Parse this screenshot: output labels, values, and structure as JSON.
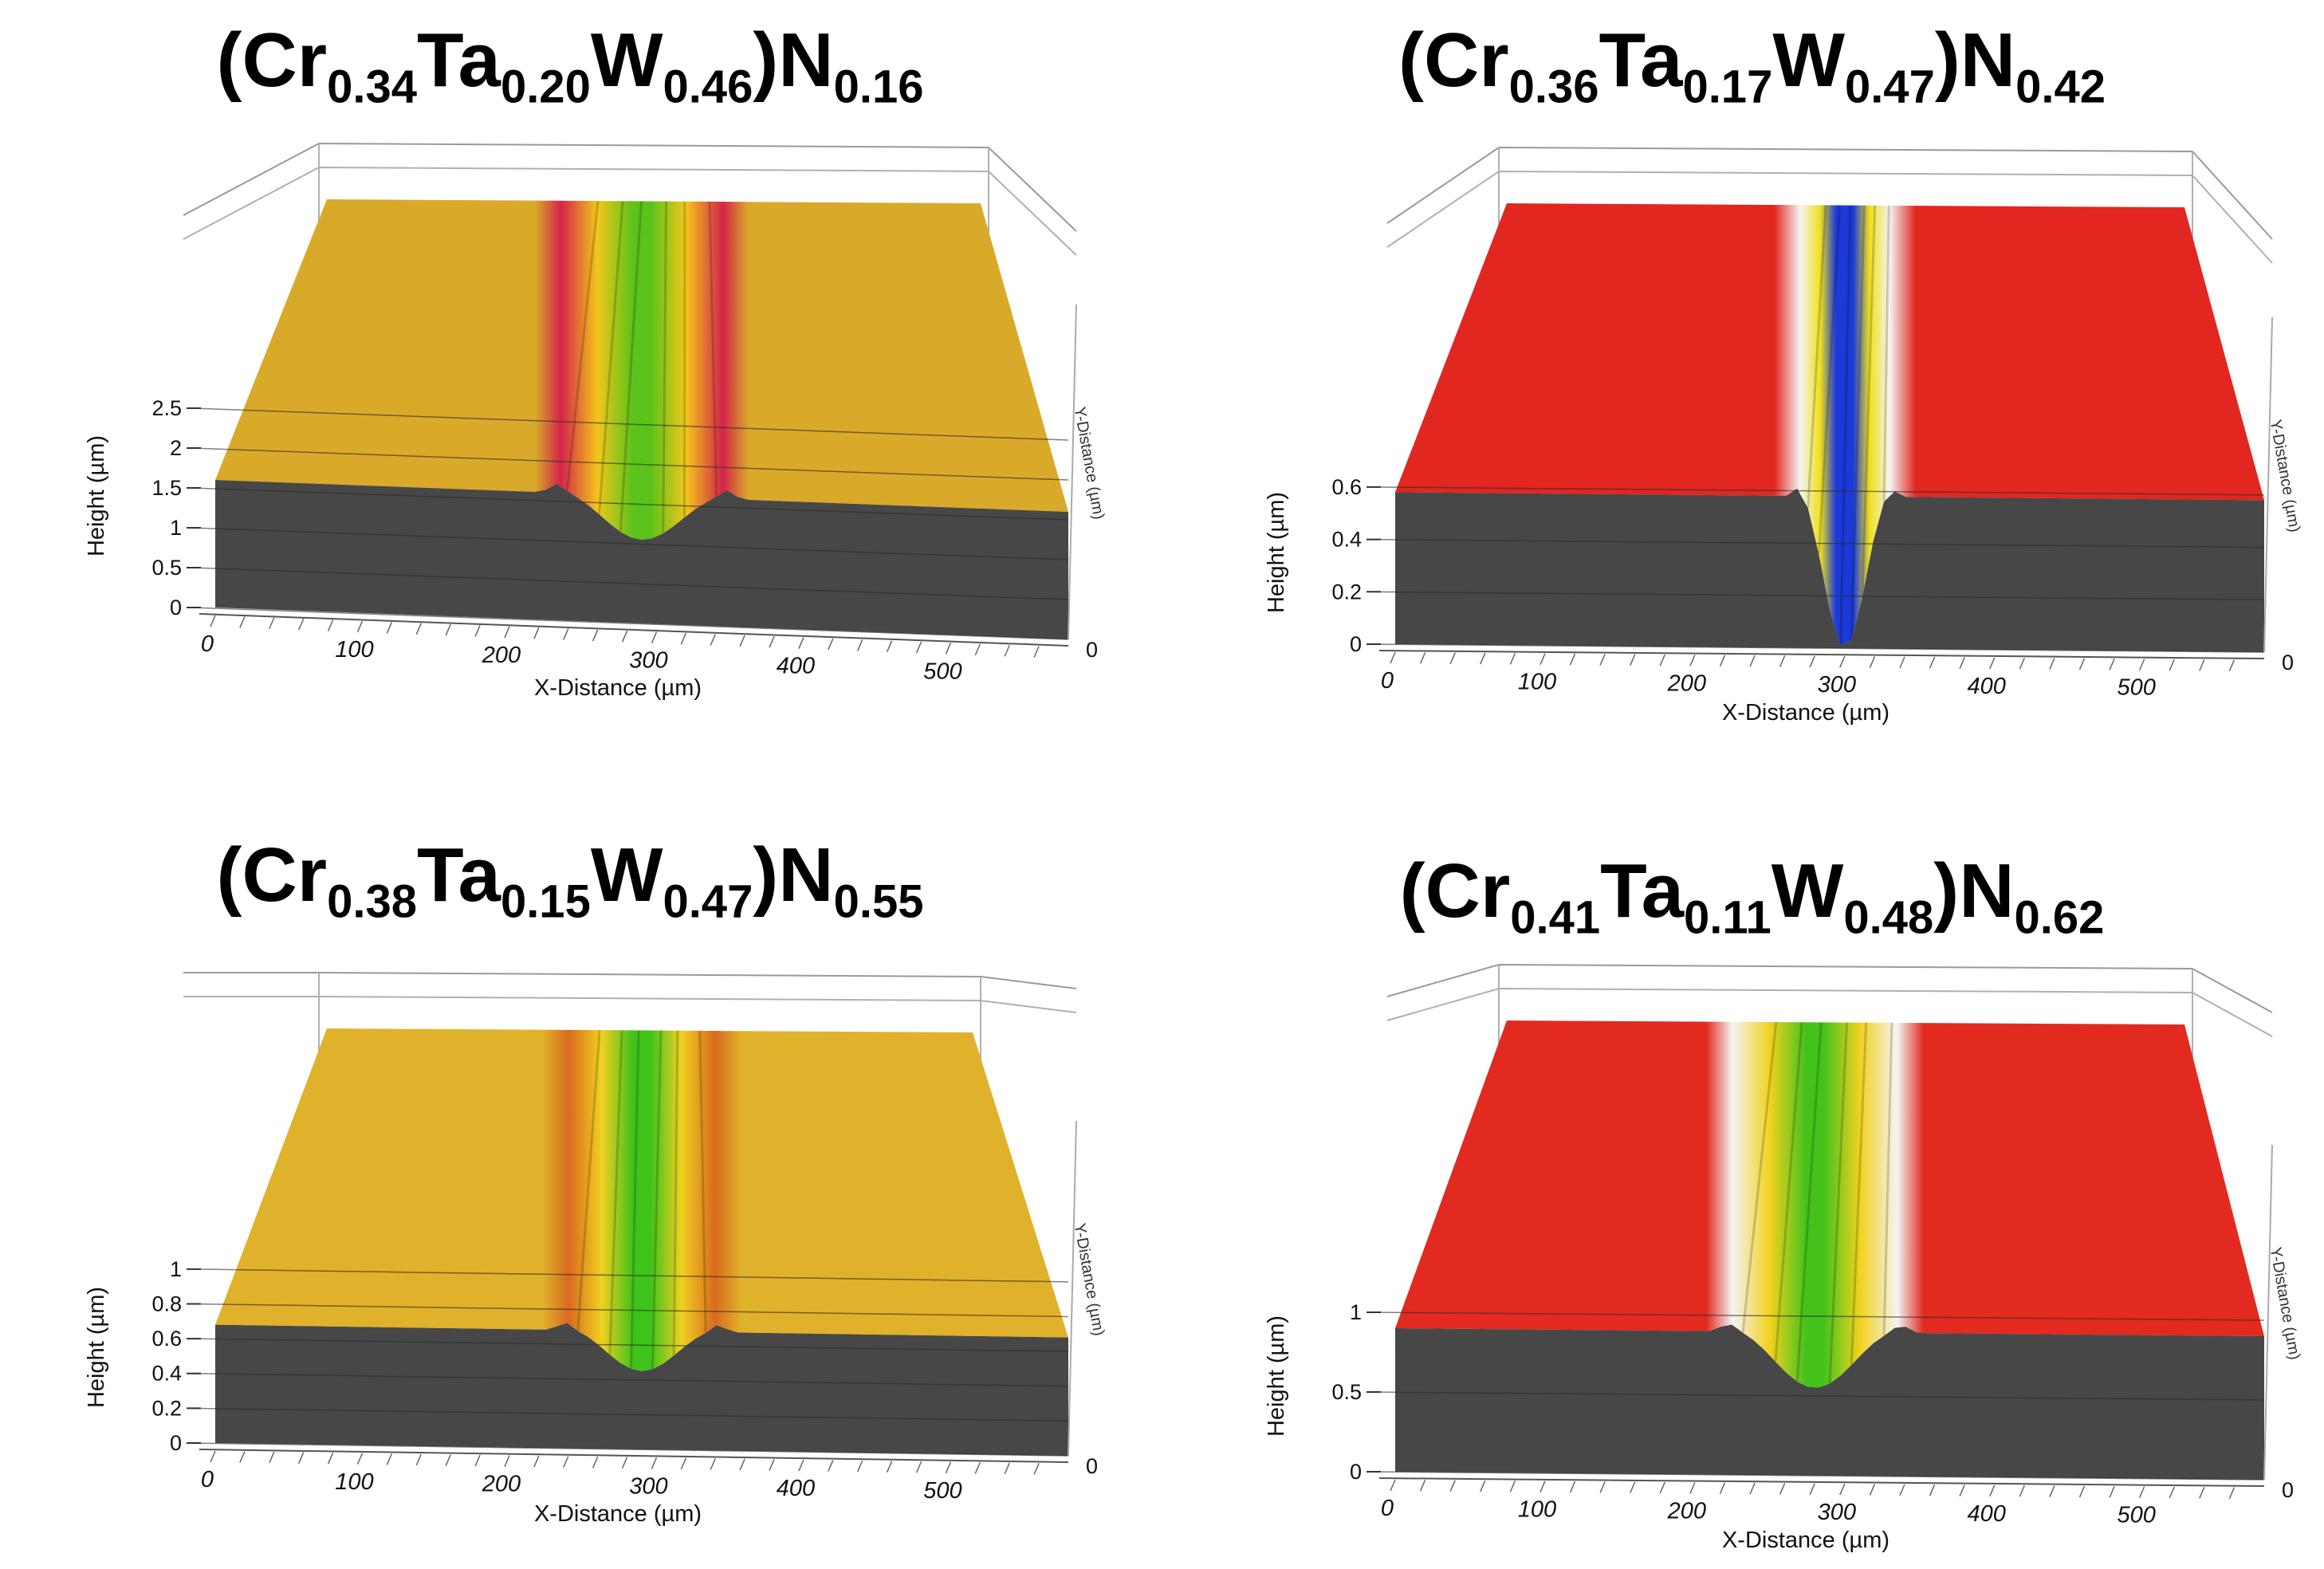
{
  "chart_data": [
    {
      "type": "surface3d",
      "title_parts": {
        "el1": "Cr",
        "s1": "0.34",
        "el2": "Ta",
        "s2": "0.20",
        "el3": "W",
        "s3": "0.46",
        "el4": "N",
        "s4": "0.16"
      },
      "title_pre": "(",
      "title_mid": ")",
      "xlabel": "X-Distance (µm)",
      "ylabel": "Height (µm)",
      "ylabel2": "Y-Distance (µm)",
      "x_ticks": [
        "0",
        "100",
        "200",
        "300",
        "400",
        "500"
      ],
      "z_ticks": [
        "0",
        "0.5",
        "1",
        "1.5",
        "2",
        "2.5"
      ],
      "y_tick": "0",
      "zlim": [
        0,
        2.8
      ],
      "xlim": [
        0,
        580
      ],
      "surface_height": 1.6,
      "trough": {
        "center_x": 290,
        "depth_height": 1.05,
        "width": 110
      },
      "colormap": "height",
      "colors": {
        "high": "#d9a92a",
        "mid": "#f2c61a",
        "low": "#5ac21a",
        "peak": "#d4244a"
      }
    },
    {
      "type": "surface3d",
      "title_parts": {
        "el1": "Cr",
        "s1": "0.36",
        "el2": "Ta",
        "s2": "0.17",
        "el3": "W",
        "s3": "0.47",
        "el4": "N",
        "s4": "0.42"
      },
      "title_pre": "(",
      "title_mid": ")",
      "xlabel": "X-Distance (µm)",
      "ylabel": "Height (µm)",
      "ylabel2": "Y-Distance (µm)",
      "x_ticks": [
        "0",
        "100",
        "200",
        "300",
        "400",
        "500"
      ],
      "z_ticks": [
        "0",
        "0.2",
        "0.4",
        "0.6"
      ],
      "y_tick": "0",
      "zlim": [
        0,
        0.7
      ],
      "xlim": [
        0,
        580
      ],
      "surface_height": 0.58,
      "trough": {
        "center_x": 300,
        "depth_height": 0.0,
        "width": 60
      },
      "colormap": "height",
      "colors": {
        "high": "#e22620",
        "mid": "#f0e01c",
        "low": "#1c3ad8",
        "peak": "#f4f4f4"
      }
    },
    {
      "type": "surface3d",
      "title_parts": {
        "el1": "Cr",
        "s1": "0.38",
        "el2": "Ta",
        "s2": "0.15",
        "el3": "W",
        "s3": "0.47",
        "el4": "N",
        "s4": "0.55"
      },
      "title_pre": "(",
      "title_mid": ")",
      "xlabel": "X-Distance (µm)",
      "ylabel": "Height (µm)",
      "ylabel2": "Y-Distance (µm)",
      "x_ticks": [
        "0",
        "100",
        "200",
        "300",
        "400",
        "500"
      ],
      "z_ticks": [
        "0",
        "0.2",
        "0.4",
        "0.6",
        "0.8",
        "1"
      ],
      "y_tick": "0",
      "zlim": [
        0,
        1.1
      ],
      "xlim": [
        0,
        580
      ],
      "surface_height": 0.68,
      "trough": {
        "center_x": 290,
        "depth_height": 0.45,
        "width": 100
      },
      "colormap": "height",
      "colors": {
        "high": "#e0b12a",
        "mid": "#f0d020",
        "low": "#3fc21a",
        "peak": "#d86a1e"
      }
    },
    {
      "type": "surface3d",
      "title_parts": {
        "el1": "Cr",
        "s1": "0.41",
        "el2": "Ta",
        "s2": "0.11",
        "el3": "W",
        "s3": "0.48",
        "el4": "N",
        "s4": "0.62"
      },
      "title_pre": "(",
      "title_mid": ")",
      "xlabel": "X-Distance (µm)",
      "ylabel": "Height (µm)",
      "ylabel2": "Y-Distance (µm)",
      "x_ticks": [
        "0",
        "100",
        "200",
        "300",
        "400",
        "500"
      ],
      "z_ticks": [
        "0",
        "0.5",
        "1"
      ],
      "y_tick": "0",
      "zlim": [
        0,
        1.2
      ],
      "xlim": [
        0,
        580
      ],
      "surface_height": 0.9,
      "trough": {
        "center_x": 280,
        "depth_height": 0.55,
        "width": 110
      },
      "colormap": "height",
      "colors": {
        "high": "#e22a20",
        "mid": "#f2d21e",
        "low": "#44c21c",
        "peak": "#f4f4f4"
      }
    }
  ]
}
